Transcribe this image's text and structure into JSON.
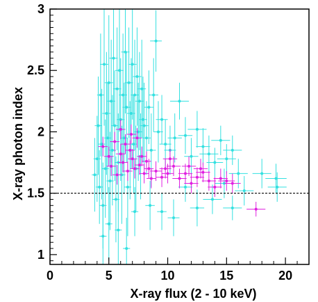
{
  "chart_data": {
    "type": "scatter",
    "xlabel": "X-ray flux (2 - 10 keV)",
    "ylabel": "X-ray photon index",
    "xlim": [
      0,
      22
    ],
    "ylim": [
      0.92,
      3.0
    ],
    "x_ticks": [
      0,
      5,
      10,
      15,
      20
    ],
    "y_ticks": [
      1,
      1.5,
      2,
      2.5,
      3
    ],
    "x_tick_labels": [
      "0",
      "5",
      "10",
      "15",
      "20"
    ],
    "y_tick_labels": [
      "1",
      "1.5",
      "2",
      "2.5",
      "3"
    ],
    "reference_line_y": 1.5,
    "grid": false,
    "series": [
      {
        "color": "#33e0e0",
        "points": [
          [
            3.8,
            1.65,
            0.25,
            0.3
          ],
          [
            4.0,
            1.78,
            0.3,
            0.35
          ],
          [
            4.1,
            2.05,
            0.3,
            0.4
          ],
          [
            4.2,
            1.55,
            0.3,
            0.3
          ],
          [
            4.3,
            2.3,
            0.3,
            0.5
          ],
          [
            4.4,
            1.9,
            0.3,
            0.45
          ],
          [
            4.5,
            1.4,
            0.3,
            0.35
          ],
          [
            4.6,
            2.55,
            0.35,
            0.5
          ],
          [
            4.7,
            1.7,
            0.3,
            0.4
          ],
          [
            4.8,
            2.15,
            0.35,
            0.5
          ],
          [
            4.9,
            1.95,
            0.3,
            0.45
          ],
          [
            5.0,
            2.4,
            0.35,
            0.55
          ],
          [
            5.1,
            1.6,
            0.3,
            0.4
          ],
          [
            5.2,
            2.25,
            0.35,
            0.5
          ],
          [
            5.3,
            1.85,
            0.3,
            0.45
          ],
          [
            5.4,
            2.6,
            0.35,
            0.55
          ],
          [
            5.5,
            2.05,
            0.3,
            0.45
          ],
          [
            5.6,
            1.45,
            0.3,
            0.35
          ],
          [
            5.7,
            2.35,
            0.35,
            0.5
          ],
          [
            5.8,
            1.75,
            0.3,
            0.4
          ],
          [
            5.9,
            2.5,
            0.35,
            0.5
          ],
          [
            6.0,
            2.1,
            0.35,
            0.5
          ],
          [
            6.1,
            1.65,
            0.3,
            0.4
          ],
          [
            6.2,
            2.3,
            0.35,
            0.5
          ],
          [
            6.3,
            1.95,
            0.3,
            0.45
          ],
          [
            6.4,
            2.65,
            0.35,
            0.5
          ],
          [
            6.5,
            2.2,
            0.35,
            0.45
          ],
          [
            6.6,
            1.55,
            0.3,
            0.4
          ],
          [
            6.7,
            2.4,
            0.35,
            0.45
          ],
          [
            6.8,
            1.85,
            0.3,
            0.4
          ],
          [
            6.9,
            2.15,
            0.35,
            0.45
          ],
          [
            7.0,
            2.55,
            0.35,
            0.45
          ],
          [
            7.1,
            1.9,
            0.3,
            0.4
          ],
          [
            7.2,
            2.3,
            0.35,
            0.45
          ],
          [
            7.3,
            1.7,
            0.3,
            0.35
          ],
          [
            7.4,
            2.45,
            0.35,
            0.4
          ],
          [
            7.5,
            2.0,
            0.35,
            0.4
          ],
          [
            7.6,
            2.25,
            0.35,
            0.4
          ],
          [
            7.7,
            1.8,
            0.3,
            0.35
          ],
          [
            7.8,
            2.35,
            0.35,
            0.4
          ],
          [
            7.9,
            2.1,
            0.35,
            0.35
          ],
          [
            8.0,
            2.05,
            0.35,
            0.35
          ],
          [
            8.2,
            1.95,
            0.35,
            0.3
          ],
          [
            8.4,
            2.2,
            0.4,
            0.3
          ],
          [
            8.6,
            1.85,
            0.4,
            0.3
          ],
          [
            8.8,
            2.3,
            0.4,
            0.3
          ],
          [
            9.0,
            2.74,
            0.5,
            0.25
          ],
          [
            9.2,
            2.0,
            0.4,
            0.25
          ],
          [
            9.5,
            2.1,
            0.5,
            0.2
          ],
          [
            9.8,
            1.9,
            0.5,
            0.2
          ],
          [
            10.2,
            1.85,
            0.5,
            0.2
          ],
          [
            10.6,
            1.95,
            0.6,
            0.2
          ],
          [
            11.0,
            2.25,
            0.8,
            0.15
          ],
          [
            11.5,
            1.97,
            0.6,
            0.15
          ],
          [
            12.0,
            1.8,
            0.6,
            0.15
          ],
          [
            12.5,
            2.02,
            0.8,
            0.15
          ],
          [
            13.0,
            1.88,
            0.6,
            0.15
          ],
          [
            13.5,
            1.82,
            0.8,
            0.15
          ],
          [
            14.0,
            1.75,
            0.7,
            0.12
          ],
          [
            14.5,
            1.93,
            0.8,
            0.12
          ],
          [
            15.0,
            1.78,
            0.8,
            0.12
          ],
          [
            15.5,
            1.85,
            0.8,
            0.12
          ],
          [
            16.0,
            1.66,
            0.8,
            0.12
          ],
          [
            14.8,
            1.58,
            0.8,
            0.12
          ],
          [
            13.8,
            1.45,
            0.8,
            0.12
          ],
          [
            15.5,
            1.38,
            0.8,
            0.1
          ],
          [
            18.0,
            1.66,
            0.8,
            0.12
          ],
          [
            19.3,
            1.55,
            0.8,
            0.12
          ],
          [
            19.2,
            1.62,
            0.9,
            0.12
          ],
          [
            4.5,
            1.15,
            0.3,
            0.3
          ],
          [
            5.0,
            1.25,
            0.3,
            0.3
          ],
          [
            6.5,
            1.05,
            0.3,
            0.25
          ],
          [
            5.8,
            1.2,
            0.3,
            0.3
          ],
          [
            7.2,
            1.35,
            0.3,
            0.2
          ],
          [
            8.5,
            1.4,
            0.4,
            0.2
          ],
          [
            9.5,
            1.35,
            0.4,
            0.15
          ],
          [
            10.5,
            1.3,
            0.5,
            0.15
          ],
          [
            12.5,
            1.38,
            0.6,
            0.15
          ],
          [
            11.5,
            1.55,
            0.6,
            0.12
          ],
          [
            16.5,
            1.52,
            0.8,
            0.12
          ]
        ]
      },
      {
        "color": "#e01fe0",
        "points": [
          [
            4.5,
            1.88,
            0.4,
            0.08
          ],
          [
            5.0,
            1.8,
            0.4,
            0.08
          ],
          [
            5.2,
            1.72,
            0.4,
            0.08
          ],
          [
            5.5,
            1.92,
            0.4,
            0.08
          ],
          [
            5.7,
            1.65,
            0.4,
            0.08
          ],
          [
            6.0,
            1.82,
            0.4,
            0.08
          ],
          [
            6.2,
            1.75,
            0.4,
            0.08
          ],
          [
            6.4,
            1.9,
            0.4,
            0.08
          ],
          [
            6.6,
            1.68,
            0.4,
            0.08
          ],
          [
            6.8,
            1.85,
            0.4,
            0.08
          ],
          [
            7.0,
            1.78,
            0.4,
            0.08
          ],
          [
            7.2,
            1.7,
            0.4,
            0.08
          ],
          [
            7.4,
            1.95,
            0.4,
            0.08
          ],
          [
            7.6,
            1.73,
            0.4,
            0.08
          ],
          [
            7.8,
            1.8,
            0.4,
            0.08
          ],
          [
            8.0,
            1.66,
            0.4,
            0.08
          ],
          [
            8.2,
            1.76,
            0.4,
            0.08
          ],
          [
            8.4,
            1.7,
            0.4,
            0.08
          ],
          [
            8.6,
            1.62,
            0.4,
            0.08
          ],
          [
            6.0,
            2.02,
            0.4,
            0.08
          ],
          [
            6.9,
            1.98,
            0.4,
            0.08
          ],
          [
            9.0,
            1.68,
            0.5,
            0.08
          ],
          [
            9.5,
            1.63,
            0.5,
            0.08
          ],
          [
            10.0,
            1.66,
            0.5,
            0.08
          ],
          [
            10.5,
            1.72,
            0.6,
            0.08
          ],
          [
            11.0,
            1.62,
            0.6,
            0.08
          ],
          [
            11.5,
            1.66,
            0.6,
            0.08
          ],
          [
            12.0,
            1.58,
            0.6,
            0.08
          ],
          [
            12.5,
            1.63,
            0.6,
            0.08
          ],
          [
            13.0,
            1.67,
            0.6,
            0.08
          ],
          [
            13.5,
            1.6,
            0.6,
            0.08
          ],
          [
            14.0,
            1.55,
            0.6,
            0.08
          ],
          [
            14.5,
            1.62,
            0.6,
            0.08
          ],
          [
            15.0,
            1.6,
            0.7,
            0.08
          ],
          [
            15.5,
            1.58,
            0.7,
            0.08
          ],
          [
            17.5,
            1.37,
            0.8,
            0.06
          ],
          [
            10.2,
            1.78,
            0.6,
            0.08
          ],
          [
            9.8,
            1.7,
            0.5,
            0.08
          ],
          [
            11.8,
            1.72,
            0.6,
            0.08
          ],
          [
            12.8,
            1.7,
            0.6,
            0.08
          ]
        ]
      }
    ]
  }
}
